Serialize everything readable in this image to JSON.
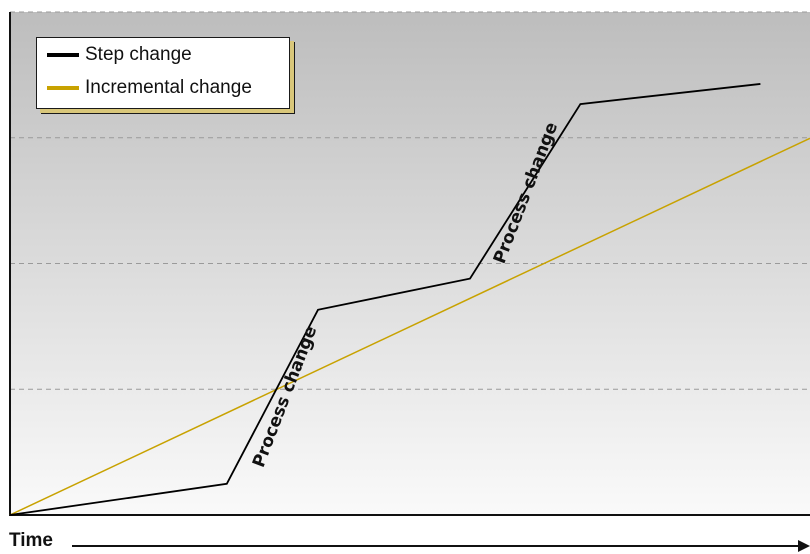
{
  "chart_data": {
    "type": "line",
    "xlabel": "Time",
    "ylabel": "",
    "xlim": [
      0,
      100
    ],
    "ylim": [
      0,
      100
    ],
    "grid": {
      "horizontal": true,
      "style": "dashed"
    },
    "legend_position": "top-left",
    "series": [
      {
        "name": "Step change",
        "color": "#000000",
        "points": [
          [
            0,
            0
          ],
          [
            27.1,
            6.2
          ],
          [
            38.5,
            40.8
          ],
          [
            57.5,
            47.0
          ],
          [
            71.3,
            81.7
          ],
          [
            93.8,
            85.7
          ]
        ]
      },
      {
        "name": "Incremental change",
        "color": "#c8a200",
        "points": [
          [
            0,
            0
          ],
          [
            100,
            74.9
          ]
        ]
      }
    ],
    "annotations": [
      {
        "text": "Process change",
        "x": 34.4,
        "y": 23.5,
        "angle": -69
      },
      {
        "text": "Process change",
        "x": 64.5,
        "y": 64.0,
        "angle": -69
      }
    ]
  }
}
